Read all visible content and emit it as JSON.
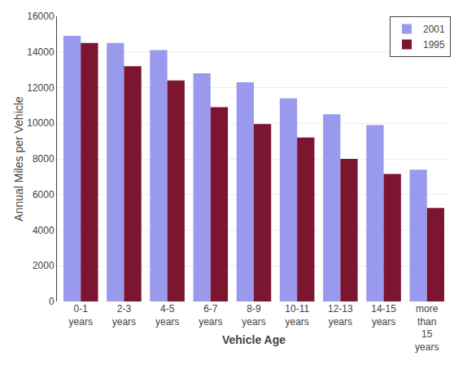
{
  "chart_data": {
    "type": "bar",
    "categories": [
      "0-1\nyears",
      "2-3\nyears",
      "4-5\nyears",
      "6-7\nyears",
      "8-9\nyears",
      "10-11\nyears",
      "12-13\nyears",
      "14-15\nyears",
      "more\nthan\n15\nyears"
    ],
    "series": [
      {
        "name": "2001",
        "color": "#9999ee",
        "values": [
          14900,
          14500,
          14100,
          12800,
          12300,
          11400,
          10500,
          9900,
          7400
        ]
      },
      {
        "name": "1995",
        "color": "#7b1530",
        "values": [
          14500,
          13200,
          12400,
          10900,
          9950,
          9200,
          8000,
          7150,
          5250
        ]
      }
    ],
    "xlabel": "Vehicle Age",
    "ylabel": "Annual Miles per Vehicle",
    "ylim": [
      0,
      16000
    ],
    "yticks": [
      0,
      2000,
      4000,
      6000,
      8000,
      10000,
      12000,
      14000,
      16000
    ],
    "grid": true,
    "legend": "upper right"
  }
}
